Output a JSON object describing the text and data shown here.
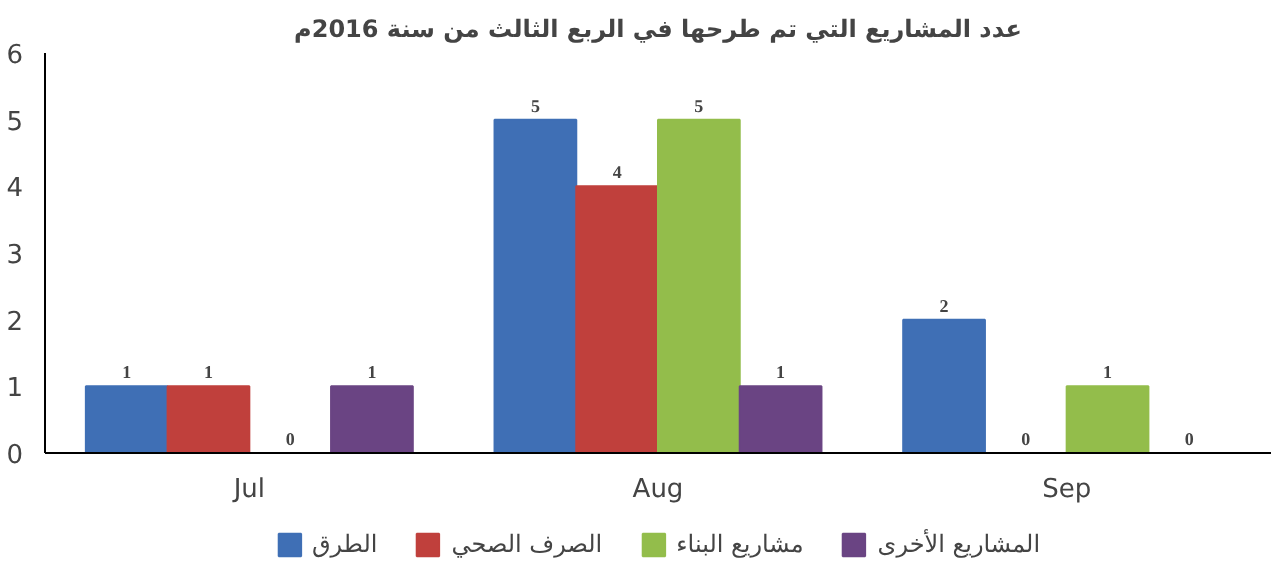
{
  "chart_data": {
    "type": "bar",
    "title": "عدد المشاريع التي تم طرحها في الربع الثالث من سنة 2016م",
    "categories": [
      "Jul",
      "Aug",
      "Sep"
    ],
    "series": [
      {
        "name": "الطرق",
        "color": "#3f6fb5",
        "values": [
          1,
          5,
          2
        ]
      },
      {
        "name": "الصرف الصحي",
        "color": "#c0403c",
        "values": [
          1,
          4,
          0
        ]
      },
      {
        "name": "مشاريع البناء",
        "color": "#93bd4b",
        "values": [
          0,
          5,
          1
        ]
      },
      {
        "name": "المشاريع الأخرى",
        "color": "#6a4483",
        "values": [
          1,
          1,
          0
        ]
      }
    ],
    "ylim": [
      0,
      6
    ],
    "yticks": [
      0,
      1,
      2,
      3,
      4,
      5,
      6
    ],
    "grid": false,
    "legend": "bottom",
    "data_labels": true
  }
}
